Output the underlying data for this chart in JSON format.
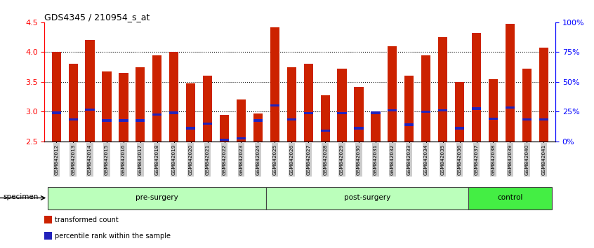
{
  "title": "GDS4345 / 210954_s_at",
  "samples": [
    "GSM842012",
    "GSM842013",
    "GSM842014",
    "GSM842015",
    "GSM842016",
    "GSM842017",
    "GSM842018",
    "GSM842019",
    "GSM842020",
    "GSM842021",
    "GSM842022",
    "GSM842023",
    "GSM842024",
    "GSM842025",
    "GSM842026",
    "GSM842027",
    "GSM842028",
    "GSM842029",
    "GSM842030",
    "GSM842031",
    "GSM842032",
    "GSM842033",
    "GSM842034",
    "GSM842035",
    "GSM842036",
    "GSM842037",
    "GSM842038",
    "GSM842039",
    "GSM842040",
    "GSM842041"
  ],
  "bar_heights": [
    4.0,
    3.8,
    4.2,
    3.68,
    3.65,
    3.75,
    3.95,
    4.0,
    3.47,
    3.6,
    2.95,
    3.2,
    2.97,
    4.42,
    3.75,
    3.8,
    3.28,
    3.72,
    3.42,
    3.0,
    4.1,
    3.6,
    3.95,
    4.25,
    3.5,
    4.32,
    3.55,
    4.47,
    3.72,
    4.07
  ],
  "blue_dot_positions": [
    2.98,
    2.87,
    3.03,
    2.85,
    2.85,
    2.85,
    2.95,
    2.98,
    2.72,
    2.8,
    2.53,
    2.55,
    2.85,
    3.1,
    2.87,
    2.97,
    2.68,
    2.97,
    2.72,
    2.98,
    3.02,
    2.78,
    3.0,
    3.02,
    2.72,
    3.05,
    2.88,
    3.07,
    2.87,
    2.87
  ],
  "baseline": 2.5,
  "ymin": 2.5,
  "ymax": 4.5,
  "left_yticks": [
    2.5,
    3.0,
    3.5,
    4.0,
    4.5
  ],
  "right_yticks_pct": [
    0,
    25,
    50,
    75,
    100
  ],
  "bar_color": "#cc2200",
  "blue_dot_color": "#2222bb",
  "bar_width": 0.55,
  "grid_yticks": [
    3.0,
    3.5,
    4.0
  ],
  "groups": [
    {
      "label": "pre-surgery",
      "start": 0,
      "end": 12,
      "color": "#bbffbb"
    },
    {
      "label": "post-surgery",
      "start": 13,
      "end": 24,
      "color": "#bbffbb"
    },
    {
      "label": "control",
      "start": 25,
      "end": 29,
      "color": "#44ee44"
    }
  ],
  "specimen_label": "specimen",
  "tick_bg_color": "#cccccc",
  "legend": [
    {
      "label": "transformed count",
      "color": "#cc2200"
    },
    {
      "label": "percentile rank within the sample",
      "color": "#2222bb"
    }
  ]
}
